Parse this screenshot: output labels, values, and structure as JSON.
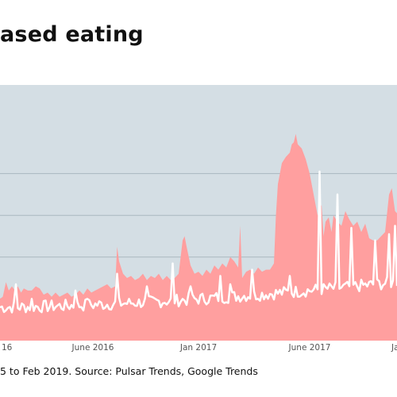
{
  "title": "ased eating",
  "source": "5 to Feb 2019. Source: Pulsar Trends, Google Trends",
  "colors": {
    "plot_bg": "#d4dee4",
    "area": "#ff9f9f",
    "line": "#ffffff",
    "grid": "#a9b7bf"
  },
  "chart_data": {
    "type": "area",
    "title": "",
    "xlabel": "",
    "ylabel": "",
    "x_ticks": [
      "16",
      "June 2016",
      "Jan 2017",
      "June 2017",
      "Ja"
    ],
    "ylim": [
      0,
      100
    ],
    "grid": true,
    "series": [
      {
        "style": "area",
        "points": [
          [
            0,
            20
          ],
          [
            0.7,
            21
          ],
          [
            1.5,
            28
          ],
          [
            2.2,
            24
          ],
          [
            3,
            26
          ],
          [
            3.8,
            24
          ],
          [
            4.5,
            26
          ],
          [
            5.3,
            23
          ],
          [
            6,
            25
          ],
          [
            7,
            24
          ],
          [
            8,
            24
          ],
          [
            9,
            26
          ],
          [
            10,
            25
          ],
          [
            11,
            22
          ],
          [
            12,
            23
          ],
          [
            13,
            21
          ],
          [
            14,
            23
          ],
          [
            15,
            21
          ],
          [
            16,
            22
          ],
          [
            17,
            23
          ],
          [
            18,
            21
          ],
          [
            19,
            22
          ],
          [
            20,
            24
          ],
          [
            21,
            22
          ],
          [
            22,
            25
          ],
          [
            23,
            23
          ],
          [
            24,
            24
          ],
          [
            25,
            25
          ],
          [
            26,
            26
          ],
          [
            27,
            27
          ],
          [
            28,
            25
          ],
          [
            29,
            26
          ],
          [
            29.5,
            45
          ],
          [
            30,
            38
          ],
          [
            31,
            32
          ],
          [
            32,
            30
          ],
          [
            33,
            31
          ],
          [
            34,
            29
          ],
          [
            35,
            30
          ],
          [
            36,
            32
          ],
          [
            37,
            29
          ],
          [
            38,
            31
          ],
          [
            39,
            30
          ],
          [
            40,
            32
          ],
          [
            41,
            29
          ],
          [
            42,
            31
          ],
          [
            43,
            29
          ],
          [
            44,
            30
          ],
          [
            45,
            32
          ],
          [
            45.5,
            40
          ],
          [
            46,
            48
          ],
          [
            46.5,
            50
          ],
          [
            47,
            45
          ],
          [
            48,
            36
          ],
          [
            49,
            32
          ],
          [
            50,
            33
          ],
          [
            51,
            31
          ],
          [
            52,
            34
          ],
          [
            53,
            32
          ],
          [
            54,
            36
          ],
          [
            55,
            34
          ],
          [
            56,
            37
          ],
          [
            57,
            35
          ],
          [
            58,
            40
          ],
          [
            59,
            38
          ],
          [
            60,
            35
          ],
          [
            60.5,
            55
          ],
          [
            61,
            30
          ],
          [
            62,
            33
          ],
          [
            63,
            34
          ],
          [
            64,
            32
          ],
          [
            65,
            35
          ],
          [
            66,
            33
          ],
          [
            67,
            34
          ],
          [
            68,
            34
          ],
          [
            69,
            37
          ],
          [
            69.5,
            60
          ],
          [
            70,
            75
          ],
          [
            71,
            85
          ],
          [
            72,
            88
          ],
          [
            73,
            90
          ],
          [
            73.5,
            94
          ],
          [
            74,
            95
          ],
          [
            74.5,
            99
          ],
          [
            75,
            94
          ],
          [
            76,
            92
          ],
          [
            77,
            87
          ],
          [
            78,
            80
          ],
          [
            79,
            70
          ],
          [
            80,
            60
          ],
          [
            81,
            65
          ],
          [
            81.5,
            50
          ],
          [
            82,
            57
          ],
          [
            82.8,
            59
          ],
          [
            83.5,
            52
          ],
          [
            84,
            60
          ],
          [
            85,
            57
          ],
          [
            86,
            55
          ],
          [
            87,
            62
          ],
          [
            88,
            58
          ],
          [
            89,
            55
          ],
          [
            90,
            57
          ],
          [
            91,
            52
          ],
          [
            92,
            56
          ],
          [
            93,
            49
          ],
          [
            94,
            48
          ],
          [
            95,
            48
          ],
          [
            96,
            50
          ],
          [
            97,
            52
          ],
          [
            98,
            70
          ],
          [
            98.7,
            73
          ],
          [
            99.5,
            62
          ],
          [
            100,
            61
          ]
        ]
      },
      {
        "style": "line",
        "base": 16,
        "amplitude": 3,
        "trend": 12,
        "spikes": [
          [
            4,
            27
          ],
          [
            8,
            20
          ],
          [
            19,
            24
          ],
          [
            22,
            20
          ],
          [
            29.5,
            32
          ],
          [
            37,
            26
          ],
          [
            43.5,
            37
          ],
          [
            48,
            26
          ],
          [
            55.5,
            31
          ],
          [
            58,
            27
          ],
          [
            63.5,
            34
          ],
          [
            73,
            31
          ],
          [
            80.5,
            81
          ],
          [
            85,
            70
          ],
          [
            88.5,
            54
          ],
          [
            94.5,
            48
          ],
          [
            98,
            51
          ],
          [
            99.5,
            55
          ]
        ]
      }
    ]
  }
}
